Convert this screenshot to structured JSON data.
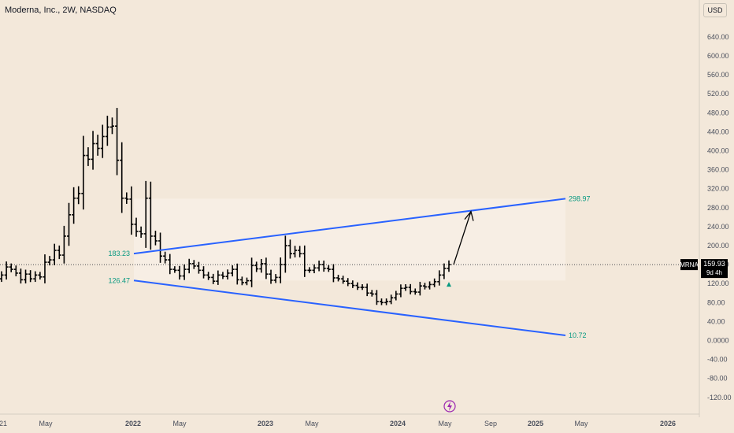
{
  "header": {
    "title": "Moderna, Inc., 2W, NASDAQ",
    "currency_button": "USD"
  },
  "price_scale": {
    "ticks": [
      640,
      600,
      560,
      520,
      480,
      440,
      400,
      360,
      320,
      280,
      240,
      200,
      160,
      120,
      80,
      40,
      0,
      -40,
      -80,
      -120
    ],
    "tick_labels": [
      "640.00",
      "600.00",
      "560.00",
      "520.00",
      "480.00",
      "440.00",
      "400.00",
      "360.00",
      "320.00",
      "280.00",
      "240.00",
      "200.00",
      "160.00",
      "120.00",
      "80.00",
      "40.00",
      "0.0000",
      "-40.00",
      "-80.00",
      "-120.00"
    ]
  },
  "time_scale": {
    "labels": [
      "21",
      "May",
      "2022",
      "May",
      "2023",
      "May",
      "2024",
      "May",
      "Sep",
      "2025",
      "May",
      "2026"
    ],
    "bold": [
      false,
      false,
      true,
      false,
      true,
      false,
      true,
      false,
      false,
      true,
      false,
      true
    ]
  },
  "last_price": {
    "symbol": "MRNA",
    "price": "159.93",
    "countdown": "9d 4h"
  },
  "annotations": {
    "upper_start": "183.23",
    "upper_end": "298.97",
    "lower_start": "126.47",
    "lower_end": "10.72"
  },
  "colors": {
    "background": "#f3e8da",
    "bars": "#000000",
    "trendline": "#2962ff",
    "label_green": "#089981",
    "signal_icon": "#9c27b0"
  },
  "chart_data": {
    "type": "ohlc",
    "title": "Moderna, Inc., 2W, NASDAQ",
    "interval": "2W",
    "ylim": [
      -140,
      680
    ],
    "series": [
      {
        "name": "MRNA",
        "values": [
          138,
          155,
          150,
          142,
          128,
          140,
          130,
          138,
          134,
          165,
          170,
          190,
          180,
          220,
          265,
          300,
          310,
          390,
          382,
          415,
          405,
          430,
          450,
          452,
          380,
          300,
          298,
          245,
          230,
          225,
          300,
          220,
          210,
          178,
          170,
          150,
          148,
          136,
          150,
          162,
          157,
          148,
          138,
          133,
          125,
          138,
          135,
          142,
          150,
          128,
          122,
          126,
          158,
          151,
          162,
          140,
          127,
          133,
          160,
          200,
          183,
          190,
          183,
          148,
          148,
          153,
          160,
          152,
          150,
          132,
          130,
          125,
          120,
          116,
          112,
          112,
          100,
          98,
          82,
          80,
          82,
          90,
          98,
          110,
          112,
          103,
          102,
          115,
          113,
          118,
          124,
          138,
          152,
          160
        ]
      }
    ],
    "trendlines": [
      {
        "name": "upper",
        "from": [
          183.23
        ],
        "to": [
          298.97
        ]
      },
      {
        "name": "lower",
        "from": [
          126.47
        ],
        "to": [
          10.72
        ]
      }
    ],
    "projection": {
      "from": 160,
      "to": 272
    }
  }
}
